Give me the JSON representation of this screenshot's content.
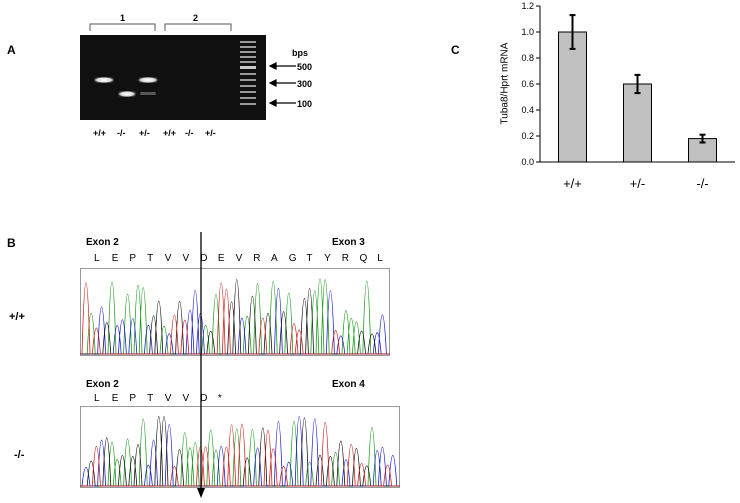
{
  "panel_a": {
    "label": "A",
    "group_labels": [
      "1",
      "2"
    ],
    "lane_labels": [
      "+/+",
      "-/-",
      "+/-",
      "+/+",
      "-/-",
      "+/-"
    ],
    "size_unit": "bps",
    "markers": [
      "500",
      "300",
      "100"
    ]
  },
  "panel_b": {
    "label": "B",
    "top": {
      "genotype": "+/+",
      "exon_left": "Exon 2",
      "exon_right": "Exon 3",
      "amino_acids": [
        "L",
        "E",
        "P",
        "T",
        "V",
        "V",
        "D",
        "E",
        "V",
        "R",
        "A",
        "G",
        "T",
        "Y",
        "R",
        "Q",
        "L"
      ]
    },
    "bottom": {
      "genotype": "-/-",
      "exon_left": "Exon 2",
      "exon_right": "Exon 4",
      "amino_acids": [
        "L",
        "E",
        "P",
        "T",
        "V",
        "V",
        "D",
        "*"
      ]
    }
  },
  "panel_c": {
    "label": "C"
  },
  "chart_data": {
    "type": "bar",
    "categories": [
      "+/+",
      "+/-",
      "-/-"
    ],
    "values": [
      1.0,
      0.6,
      0.18
    ],
    "errors": [
      0.13,
      0.07,
      0.03
    ],
    "ylabel": "Tuba8/Hprt mRNA",
    "ylim": [
      0,
      1.2
    ],
    "yticks": [
      "0.0",
      "0.2",
      "0.4",
      "0.6",
      "0.8",
      "1.0",
      "1.2"
    ],
    "bar_color": "#c0c0c0",
    "grid": false
  }
}
